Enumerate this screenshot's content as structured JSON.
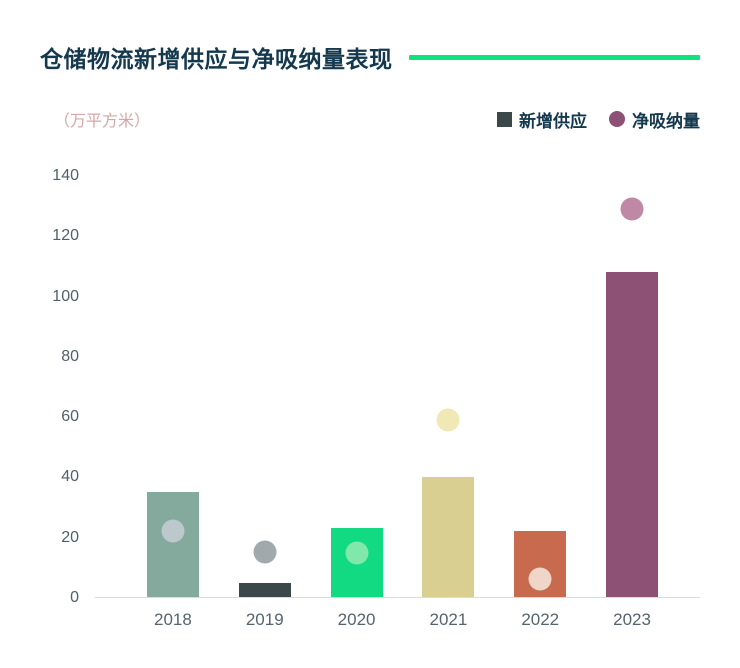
{
  "header": {
    "title": "仓储物流新增供应与净吸纳量表现",
    "accent_color": "#0ee47e"
  },
  "chart_data": {
    "type": "bar",
    "subtype": "bar-with-scatter-overlay",
    "title": "仓储物流新增供应与净吸纳量表现",
    "unit_label": "（万平方米）",
    "categories": [
      "2018",
      "2019",
      "2020",
      "2021",
      "2022",
      "2023"
    ],
    "series": [
      {
        "name": "新增供应",
        "type": "bar",
        "values": [
          35,
          4.5,
          23,
          40,
          22,
          108
        ],
        "colors": [
          "#83aa9c",
          "#3b4849",
          "#12da82",
          "#d9cf90",
          "#c76a4d",
          "#8c5174"
        ]
      },
      {
        "name": "净吸纳量",
        "type": "scatter",
        "values": [
          22,
          15,
          14.5,
          59,
          6,
          129
        ],
        "colors": [
          "#bcc8cb",
          "#a0a9ab",
          "#7fe8aa",
          "#f0e9b6",
          "#efd6c8",
          "#bf88a5"
        ]
      }
    ],
    "ylim": [
      0,
      140
    ],
    "yticks": [
      0,
      20,
      40,
      60,
      80,
      100,
      120,
      140
    ],
    "grid": false,
    "legend_position": "top-right",
    "legend": [
      {
        "label": "新增供应",
        "marker": "square",
        "color": "#3b4849"
      },
      {
        "label": "净吸纳量",
        "marker": "circle",
        "color": "#8c5174"
      }
    ]
  }
}
